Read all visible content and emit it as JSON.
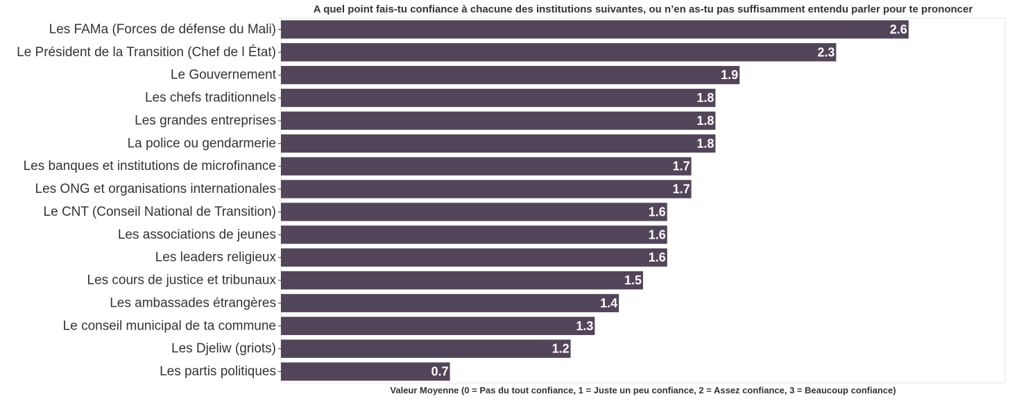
{
  "chart_data": {
    "type": "bar",
    "orientation": "horizontal",
    "title": "A quel point fais-tu confiance à chacune des institutions suivantes, ou n’en as-tu pas suffisamment entendu parler pour te prononcer",
    "xlabel": "Valeur Moyenne (0 = Pas du tout confiance, 1 = Juste un peu confiance, 2 = Assez confiance, 3 = Beaucoup confiance)",
    "ylabel": "",
    "xlim": [
      0,
      3.0
    ],
    "grid": false,
    "bar_color": "#524559",
    "categories": [
      "Les FAMa (Forces de défense du Mali)",
      "Le Président de la Transition (Chef de l État)",
      "Le Gouvernement",
      "Les chefs traditionnels",
      "Les grandes entreprises",
      "La police ou gendarmerie",
      "Les banques et institutions de microfinance",
      "Les ONG et organisations internationales",
      "Le CNT (Conseil National de Transition)",
      "Les associations de jeunes",
      "Les leaders religieux",
      "Les cours de justice et tribunaux",
      "Les ambassades étrangères",
      "Le conseil municipal de ta commune",
      "Les Djeliw (griots)",
      "Les partis politiques"
    ],
    "values": [
      2.6,
      2.3,
      1.9,
      1.8,
      1.8,
      1.8,
      1.7,
      1.7,
      1.6,
      1.6,
      1.6,
      1.5,
      1.4,
      1.3,
      1.2,
      0.7
    ],
    "value_labels": [
      "2.6",
      "2.3",
      "1.9",
      "1.8",
      "1.8",
      "1.8",
      "1.7",
      "1.7",
      "1.6",
      "1.6",
      "1.6",
      "1.5",
      "1.4",
      "1.3",
      "1.2",
      "0.7"
    ]
  }
}
